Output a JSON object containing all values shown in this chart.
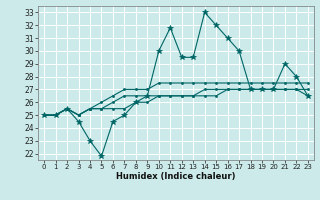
{
  "title": "",
  "xlabel": "Humidex (Indice chaleur)",
  "bg_color": "#cceaea",
  "grid_color": "#ffffff",
  "line_color": "#006666",
  "xlim": [
    -0.5,
    23.5
  ],
  "ylim": [
    21.5,
    33.5
  ],
  "xticks": [
    0,
    1,
    2,
    3,
    4,
    5,
    6,
    7,
    8,
    9,
    10,
    11,
    12,
    13,
    14,
    15,
    16,
    17,
    18,
    19,
    20,
    21,
    22,
    23
  ],
  "yticks": [
    22,
    23,
    24,
    25,
    26,
    27,
    28,
    29,
    30,
    31,
    32,
    33
  ],
  "series": [
    [
      25.0,
      25.0,
      25.5,
      24.5,
      23.0,
      21.8,
      24.5,
      25.0,
      26.0,
      26.5,
      30.0,
      31.8,
      29.5,
      29.5,
      33.0,
      32.0,
      31.0,
      30.0,
      27.0,
      27.0,
      27.0,
      29.0,
      28.0,
      26.5
    ],
    [
      25.0,
      25.0,
      25.5,
      25.0,
      25.5,
      25.5,
      25.5,
      25.5,
      26.0,
      26.0,
      26.5,
      26.5,
      26.5,
      26.5,
      27.0,
      27.0,
      27.0,
      27.0,
      27.0,
      27.0,
      27.0,
      27.0,
      27.0,
      26.5
    ],
    [
      25.0,
      25.0,
      25.5,
      25.0,
      25.5,
      25.5,
      26.0,
      26.5,
      26.5,
      26.5,
      26.5,
      26.5,
      26.5,
      26.5,
      26.5,
      26.5,
      27.0,
      27.0,
      27.0,
      27.0,
      27.0,
      27.0,
      27.0,
      27.0
    ],
    [
      25.0,
      25.0,
      25.5,
      25.0,
      25.5,
      26.0,
      26.5,
      27.0,
      27.0,
      27.0,
      27.5,
      27.5,
      27.5,
      27.5,
      27.5,
      27.5,
      27.5,
      27.5,
      27.5,
      27.5,
      27.5,
      27.5,
      27.5,
      27.5
    ]
  ],
  "markers": [
    "*",
    ".",
    ".",
    "."
  ],
  "markersizes": [
    4,
    3,
    3,
    3
  ]
}
